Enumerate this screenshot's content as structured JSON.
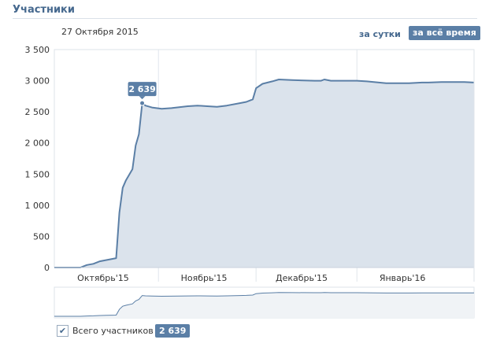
{
  "header": {
    "title": "Участники"
  },
  "date_label": "27 Октября 2015",
  "range": {
    "day": "за сутки",
    "all": "за всё время"
  },
  "tooltip_value": "2 639",
  "legend": {
    "label": "Всего участников",
    "value": "2 639",
    "checked": true
  },
  "colors": {
    "line": "#5b7fa6",
    "fill": "#dbe3ec",
    "accent": "#5b7fa6"
  },
  "chart_data": {
    "type": "area",
    "ylim": [
      0,
      3500
    ],
    "y_ticks": [
      {
        "value": 0,
        "label": "0"
      },
      {
        "value": 500,
        "label": "500"
      },
      {
        "value": 1000,
        "label": "1 000"
      },
      {
        "value": 1500,
        "label": "1 500"
      },
      {
        "value": 2000,
        "label": "2 000"
      },
      {
        "value": 2500,
        "label": "2 500"
      },
      {
        "value": 3000,
        "label": "3 000"
      },
      {
        "value": 3500,
        "label": "3 500"
      }
    ],
    "x_range": [
      "2015-09-30",
      "2016-02-06"
    ],
    "x_ticks": [
      {
        "date": "2015-10-15",
        "label": "Октябрь'15"
      },
      {
        "date": "2015-11-15",
        "label": "Ноябрь'15"
      },
      {
        "date": "2015-12-15",
        "label": "Декабрь'15"
      },
      {
        "date": "2016-01-15",
        "label": "Январь'16"
      }
    ],
    "grid_dates": [
      "2015-11-01",
      "2015-12-01",
      "2016-01-01"
    ],
    "highlight": {
      "date": "2015-10-27",
      "value": 2639
    },
    "series": [
      {
        "name": "Всего участников",
        "x": [
          "2015-09-30",
          "2015-10-08",
          "2015-10-10",
          "2015-10-12",
          "2015-10-14",
          "2015-10-16",
          "2015-10-19",
          "2015-10-20",
          "2015-10-21",
          "2015-10-22",
          "2015-10-24",
          "2015-10-25",
          "2015-10-26",
          "2015-10-27",
          "2015-10-28",
          "2015-10-30",
          "2015-11-02",
          "2015-11-05",
          "2015-11-10",
          "2015-11-13",
          "2015-11-16",
          "2015-11-19",
          "2015-11-22",
          "2015-11-26",
          "2015-11-28",
          "2015-11-30",
          "2015-12-01",
          "2015-12-03",
          "2015-12-06",
          "2015-12-08",
          "2015-12-12",
          "2015-12-19",
          "2015-12-21",
          "2015-12-22",
          "2015-12-24",
          "2016-01-01",
          "2016-01-04",
          "2016-01-10",
          "2016-01-14",
          "2016-01-17",
          "2016-01-21",
          "2016-01-23",
          "2016-01-27",
          "2016-02-03",
          "2016-02-06"
        ],
        "values": [
          0,
          0,
          40,
          60,
          100,
          120,
          150,
          880,
          1280,
          1400,
          1580,
          1960,
          2140,
          2639,
          2600,
          2570,
          2550,
          2560,
          2590,
          2600,
          2590,
          2580,
          2600,
          2640,
          2660,
          2700,
          2880,
          2950,
          2990,
          3020,
          3010,
          3000,
          3000,
          3020,
          3000,
          3000,
          2990,
          2960,
          2960,
          2960,
          2970,
          2970,
          2980,
          2980,
          2970
        ]
      }
    ]
  }
}
